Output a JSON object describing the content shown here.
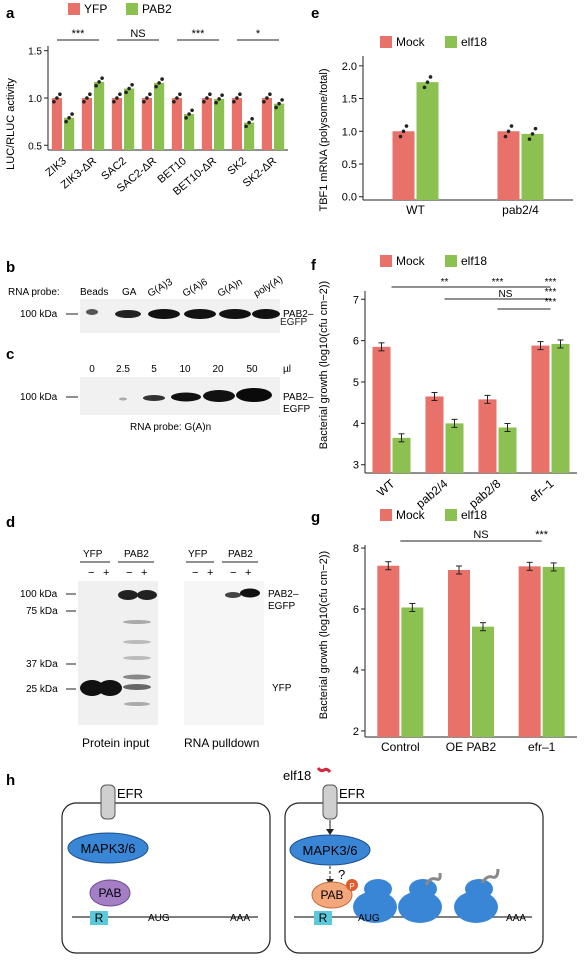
{
  "panel_letters": {
    "a": "a",
    "b": "b",
    "c": "c",
    "d": "d",
    "e": "e",
    "f": "f",
    "g": "g",
    "h": "h"
  },
  "colors": {
    "red": "#e8716a",
    "green": "#8cc152",
    "blue": "#3a86d6",
    "purple": "#a57fc6",
    "orange": "#f4a77b",
    "cyan": "#5bc9d9",
    "black": "#222222"
  },
  "panel_b": {
    "probe_label": "RNA probe:",
    "lanes": [
      "Beads",
      "GA",
      "G(A)3",
      "G(A)6",
      "G(A)n",
      "poly(A)"
    ],
    "marker": "100 kDa",
    "band_label_1": "PAB2–",
    "band_label_2": "EGFP"
  },
  "panel_c": {
    "volumes": [
      "0",
      "2.5",
      "5",
      "10",
      "20",
      "50"
    ],
    "unit": "µl",
    "marker": "100 kDa",
    "band_label_1": "PAB2–",
    "band_label_2": "EGFP",
    "probe_caption": "RNA probe: G(A)n"
  },
  "panel_d": {
    "groups": [
      "YFP",
      "PAB2",
      "YFP",
      "PAB2"
    ],
    "signs": [
      "−",
      "+",
      "−",
      "+",
      "−",
      "+",
      "−",
      "+"
    ],
    "markers": [
      "100 kDa",
      "75 kDa",
      "37 kDa",
      "25 kDa"
    ],
    "band_label_1": "PAB2–",
    "band_label_2": "EGFP",
    "yfp_label": "YFP",
    "caption_left": "Protein input",
    "caption_right": "RNA pulldown"
  },
  "panel_h": {
    "receptor": "EFR",
    "ligand": "elf18",
    "kinase": "MAPK3/6",
    "question": "?",
    "pab": "PAB",
    "phospho": "P",
    "r_box": "R",
    "aug": "AUG",
    "aaa": "AAA"
  },
  "chart_data": [
    {
      "id": "a",
      "type": "bar",
      "ylabel": "LUC/RLUC activity",
      "ylim": [
        0.45,
        1.55
      ],
      "yticks": [
        0.5,
        1.0,
        1.5
      ],
      "categories": [
        "ZIK3",
        "ZIK3-ΔR",
        "SAC2",
        "SAC2-ΔR",
        "BET10",
        "BET10-ΔR",
        "SK2",
        "SK2-ΔR"
      ],
      "series": [
        {
          "name": "YFP",
          "values": [
            1.0,
            1.0,
            1.0,
            1.0,
            1.0,
            1.0,
            1.0,
            1.0
          ]
        },
        {
          "name": "PAB2",
          "values": [
            0.79,
            1.17,
            1.1,
            1.16,
            0.83,
            0.99,
            0.74,
            0.94
          ]
        }
      ],
      "significance": [
        "***",
        "NS",
        "***",
        "*"
      ]
    },
    {
      "id": "e",
      "type": "bar",
      "ylabel": "TBF1 mRNA (polysome/total)",
      "ylim": [
        -0.05,
        2.15
      ],
      "yticks": [
        0.0,
        0.5,
        1.0,
        1.5,
        2.0
      ],
      "categories": [
        "WT",
        "pab2/4"
      ],
      "series": [
        {
          "name": "Mock",
          "values": [
            1.0,
            1.0
          ]
        },
        {
          "name": "elf18",
          "values": [
            1.75,
            0.96
          ]
        }
      ]
    },
    {
      "id": "f",
      "type": "bar",
      "ylabel": "Bacterial growth (log10(cfu cm−2))",
      "ylim": [
        2.8,
        7.2
      ],
      "yticks": [
        3,
        4,
        5,
        6,
        7
      ],
      "categories": [
        "WT",
        "pab2/4",
        "pab2/8",
        "efr–1"
      ],
      "series": [
        {
          "name": "Mock",
          "values": [
            5.85,
            4.65,
            4.58,
            5.88
          ]
        },
        {
          "name": "elf18",
          "values": [
            3.65,
            4.0,
            3.9,
            5.92
          ]
        }
      ],
      "significance": [
        "**",
        "***",
        "***",
        "NS",
        "***",
        "***"
      ]
    },
    {
      "id": "g",
      "type": "bar",
      "ylabel": "Bacterial growth (log10(cfu cm−2))",
      "ylim": [
        1.8,
        8.1
      ],
      "yticks": [
        2,
        4,
        6,
        8
      ],
      "categories": [
        "Control",
        "OE PAB2",
        "efr–1"
      ],
      "series": [
        {
          "name": "Mock",
          "values": [
            7.42,
            7.28,
            7.4
          ]
        },
        {
          "name": "elf18",
          "values": [
            6.05,
            5.42,
            7.38
          ]
        }
      ],
      "significance": [
        "NS",
        "***"
      ]
    }
  ]
}
